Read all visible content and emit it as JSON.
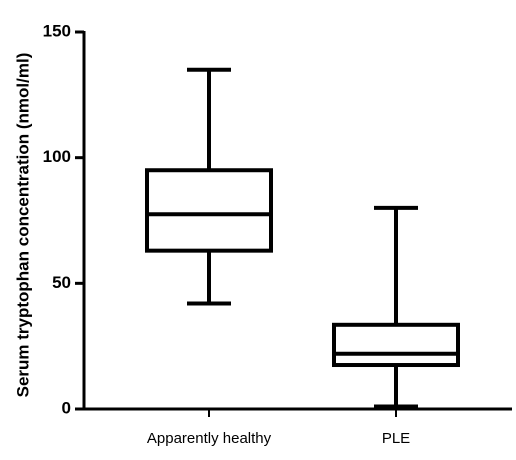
{
  "chart_data": {
    "type": "boxplot",
    "title": "",
    "xlabel": "",
    "ylabel": "Serum tryptophan concentration (nmol/ml)",
    "ylim": [
      0,
      150
    ],
    "yticks": [
      0,
      50,
      100,
      150
    ],
    "grid": false,
    "legend": "none",
    "categories": [
      "Apparently healthy",
      "PLE"
    ],
    "boxes": [
      {
        "category": "Apparently healthy",
        "min": 42,
        "q1": 63,
        "median": 77.5,
        "q3": 95,
        "max": 135
      },
      {
        "category": "PLE",
        "min": 1,
        "q1": 17.5,
        "median": 22,
        "q3": 33.5,
        "max": 80
      }
    ],
    "colors": {
      "stroke": "#000000",
      "fill": "#ffffff"
    }
  }
}
